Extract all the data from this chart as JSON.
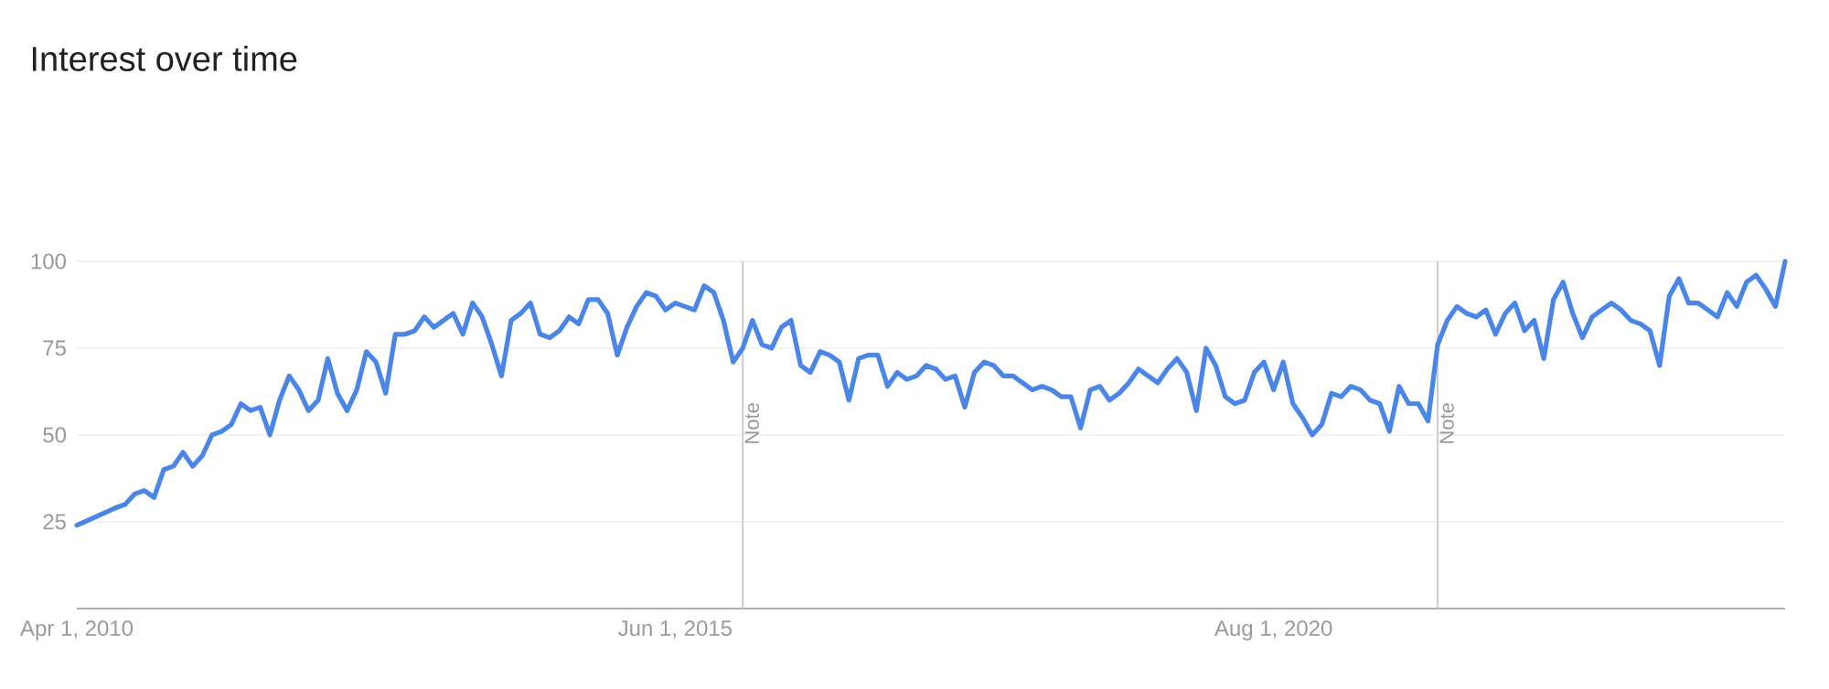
{
  "chart_data": {
    "type": "line",
    "title": "Interest over time",
    "x": [
      "2010-04",
      "2010-08",
      "2010-09",
      "2010-10",
      "2010-11",
      "2010-12",
      "2011-01",
      "2011-02",
      "2011-03",
      "2011-04",
      "2011-05",
      "2011-06",
      "2011-07",
      "2011-08",
      "2011-09",
      "2011-10",
      "2011-11",
      "2011-12",
      "2012-01",
      "2012-02",
      "2012-03",
      "2012-04",
      "2012-05",
      "2012-06",
      "2012-07",
      "2012-08",
      "2012-09",
      "2012-10",
      "2012-11",
      "2012-12",
      "2013-01",
      "2013-02",
      "2013-03",
      "2013-04",
      "2013-05",
      "2013-06",
      "2013-07",
      "2013-08",
      "2013-09",
      "2013-10",
      "2013-11",
      "2013-12",
      "2014-01",
      "2014-02",
      "2014-03",
      "2014-04",
      "2014-05",
      "2014-06",
      "2014-07",
      "2014-08",
      "2014-09",
      "2014-10",
      "2014-11",
      "2014-12",
      "2015-01",
      "2015-02",
      "2015-03",
      "2015-04",
      "2015-05",
      "2015-06",
      "2015-07",
      "2015-08",
      "2015-09",
      "2015-10",
      "2015-11",
      "2015-12",
      "2016-01",
      "2016-02",
      "2016-03",
      "2016-04",
      "2016-05",
      "2016-06",
      "2016-07",
      "2016-08",
      "2016-09",
      "2016-10",
      "2016-11",
      "2016-12",
      "2017-01",
      "2017-02",
      "2017-03",
      "2017-04",
      "2017-05",
      "2017-06",
      "2017-07",
      "2017-08",
      "2017-09",
      "2017-10",
      "2017-11",
      "2017-12",
      "2018-01",
      "2018-02",
      "2018-03",
      "2018-04",
      "2018-05",
      "2018-06",
      "2018-07",
      "2018-08",
      "2018-09",
      "2018-10",
      "2018-11",
      "2018-12",
      "2019-01",
      "2019-02",
      "2019-03",
      "2019-04",
      "2019-05",
      "2019-06",
      "2019-07",
      "2019-08",
      "2019-09",
      "2019-10",
      "2019-11",
      "2019-12",
      "2020-01",
      "2020-02",
      "2020-03",
      "2020-04",
      "2020-05",
      "2020-06",
      "2020-07",
      "2020-08",
      "2020-09",
      "2020-10",
      "2020-11",
      "2020-12",
      "2021-01",
      "2021-02",
      "2021-03",
      "2021-04",
      "2021-05",
      "2021-06",
      "2021-07",
      "2021-08",
      "2021-09",
      "2021-10",
      "2021-11",
      "2021-12",
      "2022-01",
      "2022-02",
      "2022-03",
      "2022-04",
      "2022-05",
      "2022-06",
      "2022-07",
      "2022-08",
      "2022-09",
      "2022-10",
      "2022-11",
      "2022-12",
      "2023-01",
      "2023-02",
      "2023-03",
      "2023-04",
      "2023-05",
      "2023-06",
      "2023-07",
      "2023-08",
      "2023-09",
      "2023-10",
      "2023-11",
      "2023-12",
      "2024-01",
      "2024-02",
      "2024-03",
      "2024-04",
      "2024-05",
      "2024-06",
      "2024-07",
      "2024-08",
      "2024-09",
      "2024-10",
      "2024-11",
      "2024-12",
      "2025-01"
    ],
    "series": [
      {
        "color": "#4a86e8",
        "values": [
          24,
          29,
          30,
          33,
          34,
          32,
          40,
          41,
          45,
          41,
          44,
          50,
          51,
          53,
          59,
          57,
          58,
          50,
          60,
          67,
          63,
          57,
          60,
          72,
          62,
          57,
          63,
          74,
          71,
          62,
          79,
          79,
          80,
          84,
          81,
          83,
          85,
          79,
          88,
          84,
          76,
          67,
          83,
          85,
          88,
          79,
          78,
          80,
          84,
          82,
          89,
          89,
          85,
          73,
          81,
          87,
          91,
          90,
          86,
          88,
          87,
          86,
          93,
          91,
          83,
          71,
          75,
          83,
          76,
          75,
          81,
          83,
          70,
          68,
          74,
          73,
          71,
          60,
          72,
          73,
          73,
          64,
          68,
          66,
          67,
          70,
          69,
          66,
          67,
          58,
          68,
          71,
          70,
          67,
          67,
          65,
          63,
          64,
          63,
          61,
          61,
          52,
          63,
          64,
          60,
          62,
          65,
          69,
          67,
          65,
          69,
          72,
          68,
          57,
          75,
          70,
          61,
          59,
          60,
          68,
          71,
          63,
          71,
          59,
          55,
          50,
          53,
          62,
          61,
          64,
          63,
          60,
          59,
          51,
          64,
          59,
          59,
          54,
          76,
          83,
          87,
          85,
          84,
          86,
          79,
          85,
          88,
          80,
          83,
          72,
          89,
          94,
          85,
          78,
          84,
          86,
          88,
          86,
          83,
          82,
          80,
          70,
          90,
          95,
          88,
          88,
          86,
          84,
          91,
          87,
          94,
          96,
          92,
          87,
          100
        ]
      }
    ],
    "xlim": [
      "2010-04",
      "2025-01"
    ],
    "xticks": [
      {
        "value": "2010-04",
        "label": "Apr 1, 2010"
      },
      {
        "value": "2015-06",
        "label": "Jun 1, 2015"
      },
      {
        "value": "2020-08",
        "label": "Aug 1, 2020"
      }
    ],
    "ylim": [
      0,
      100
    ],
    "yticks": [
      25,
      50,
      75,
      100
    ],
    "grid": "y",
    "ref_lines": [
      {
        "axis": "x",
        "value": "2016-01",
        "label": "Note",
        "color": "#cccccc"
      },
      {
        "axis": "x",
        "value": "2022-01",
        "label": "Note",
        "color": "#cccccc"
      }
    ]
  }
}
